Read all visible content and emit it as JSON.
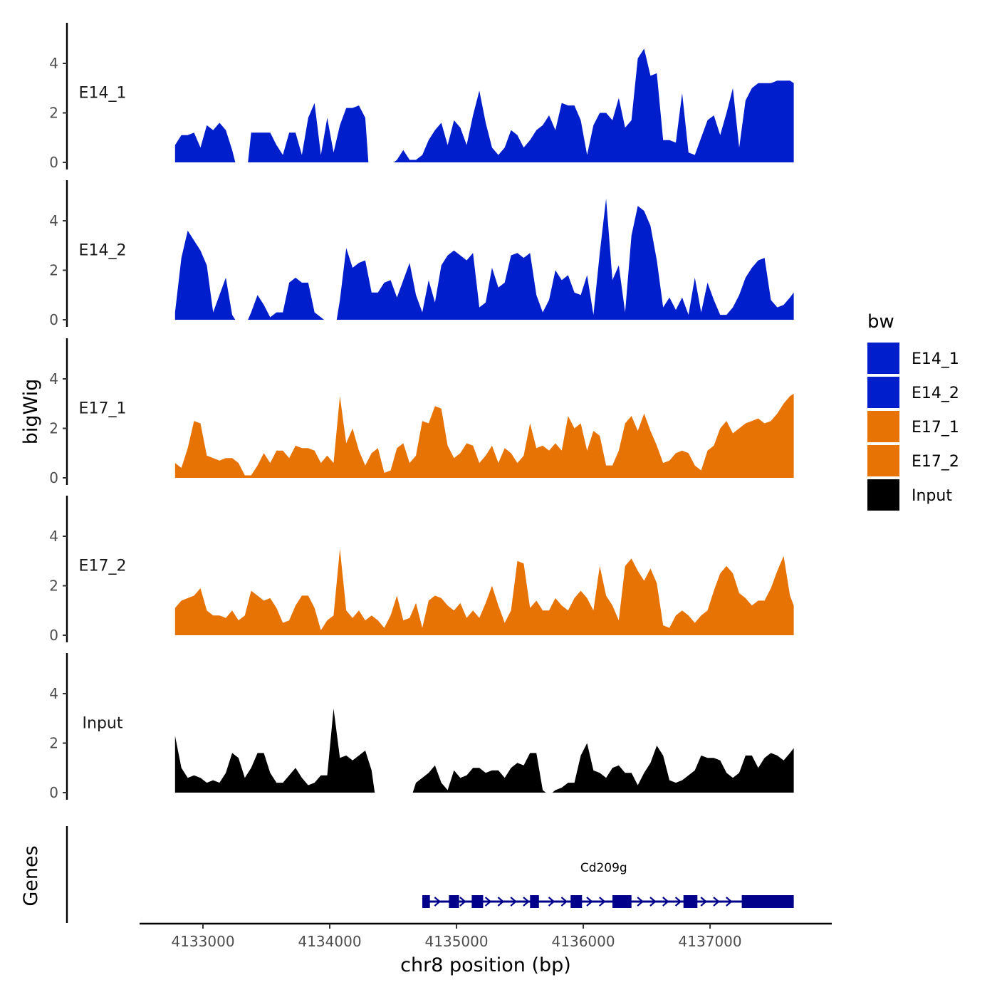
{
  "chart_data": {
    "type": "area",
    "xlabel": "chr8 position (bp)",
    "ylabel": "bigWig",
    "genes_label": "Genes",
    "xlim": [
      4132500,
      4137960
    ],
    "x_ticks": [
      4133000,
      4134000,
      4135000,
      4136000,
      4137000
    ],
    "x_tick_labels": [
      "4133000",
      "4134000",
      "4135000",
      "4136000",
      "4137000"
    ],
    "ylim": [
      0,
      5.6
    ],
    "y_ticks": [
      0,
      2,
      4
    ],
    "y_tick_labels": [
      "0",
      "2",
      "4"
    ],
    "legend": {
      "title": "bw",
      "entries": [
        {
          "label": "E14_1",
          "color": "#001ecc"
        },
        {
          "label": "E14_2",
          "color": "#001ecc"
        },
        {
          "label": "E17_1",
          "color": "#e87305"
        },
        {
          "label": "E17_2",
          "color": "#e87305"
        },
        {
          "label": "Input",
          "color": "#000000"
        }
      ]
    },
    "series": [
      {
        "name": "E14_1",
        "color": "#001ecc",
        "x": [
          4132780,
          4132830,
          4132880,
          4132930,
          4132980,
          4133030,
          4133080,
          4133130,
          4133180,
          4133230,
          4133280,
          4133330,
          4133380,
          4133430,
          4133480,
          4133530,
          4133580,
          4133630,
          4133680,
          4133730,
          4133780,
          4133830,
          4133880,
          4133930,
          4133980,
          4134030,
          4134080,
          4134130,
          4134180,
          4134230,
          4134280,
          4134330,
          4134380,
          4134430,
          4134480,
          4134530,
          4134580,
          4134630,
          4134680,
          4134730,
          4134780,
          4134830,
          4134880,
          4134930,
          4134980,
          4135030,
          4135080,
          4135130,
          4135180,
          4135230,
          4135280,
          4135330,
          4135380,
          4135430,
          4135480,
          4135530,
          4135580,
          4135630,
          4135680,
          4135730,
          4135780,
          4135830,
          4135880,
          4135930,
          4135980,
          4136030,
          4136080,
          4136130,
          4136180,
          4136230,
          4136280,
          4136330,
          4136380,
          4136430,
          4136480,
          4136530,
          4136580,
          4136630,
          4136680,
          4136730,
          4136780,
          4136830,
          4136880,
          4136930,
          4136980,
          4137030,
          4137080,
          4137130,
          4137180,
          4137230,
          4137280,
          4137330,
          4137380,
          4137430,
          4137480,
          4137530,
          4137580,
          4137630,
          4137660
        ],
        "y": [
          0.7,
          1.1,
          1.1,
          1.2,
          0.6,
          1.5,
          1.3,
          1.6,
          1.3,
          0.5,
          0,
          0,
          1.2,
          1.2,
          1.2,
          1.2,
          0.7,
          0.3,
          1.2,
          1.2,
          0.3,
          1.8,
          2.4,
          0.3,
          1.8,
          0.4,
          1.5,
          2.2,
          2.2,
          2.3,
          1.8,
          0,
          0,
          0,
          0,
          0.1,
          0.5,
          0.1,
          0.1,
          0.3,
          0.9,
          1.3,
          1.6,
          0.7,
          1.7,
          1.4,
          0.7,
          1.9,
          2.9,
          1.6,
          0.6,
          0.3,
          0.6,
          1.3,
          1.1,
          0.6,
          0.9,
          1.3,
          1.5,
          1.9,
          1.3,
          2.4,
          2.3,
          2.3,
          1.7,
          0.3,
          1.5,
          2.0,
          2.0,
          1.7,
          2.6,
          1.4,
          1.7,
          4.2,
          4.6,
          3.5,
          3.6,
          0.9,
          0.9,
          0.8,
          2.8,
          0.4,
          0.3,
          1.0,
          1.7,
          1.9,
          1.1,
          2.0,
          3.0,
          0.6,
          2.5,
          3.0,
          3.2,
          3.2,
          3.2,
          3.3,
          3.3,
          3.3,
          3.2
        ]
      },
      {
        "name": "E14_2",
        "color": "#001ecc",
        "x": [
          4132780,
          4132830,
          4132880,
          4132930,
          4132980,
          4133030,
          4133080,
          4133130,
          4133180,
          4133230,
          4133280,
          4133330,
          4133380,
          4133430,
          4133480,
          4133530,
          4133580,
          4133630,
          4133680,
          4133730,
          4133780,
          4133830,
          4133880,
          4133930,
          4133980,
          4134030,
          4134080,
          4134130,
          4134180,
          4134230,
          4134280,
          4134330,
          4134380,
          4134430,
          4134480,
          4134530,
          4134580,
          4134630,
          4134680,
          4134730,
          4134780,
          4134830,
          4134880,
          4134930,
          4134980,
          4135030,
          4135080,
          4135130,
          4135180,
          4135230,
          4135280,
          4135330,
          4135380,
          4135430,
          4135480,
          4135530,
          4135580,
          4135630,
          4135680,
          4135730,
          4135780,
          4135830,
          4135880,
          4135930,
          4135980,
          4136030,
          4136080,
          4136130,
          4136180,
          4136230,
          4136280,
          4136330,
          4136380,
          4136430,
          4136480,
          4136530,
          4136580,
          4136630,
          4136680,
          4136730,
          4136780,
          4136830,
          4136880,
          4136930,
          4136980,
          4137030,
          4137080,
          4137130,
          4137180,
          4137230,
          4137280,
          4137330,
          4137380,
          4137430,
          4137480,
          4137530,
          4137580,
          4137630,
          4137660
        ],
        "y": [
          0.3,
          2.5,
          3.6,
          3.2,
          2.8,
          2.2,
          0.3,
          1.0,
          1.7,
          0.2,
          0,
          0,
          0.3,
          1.0,
          0.6,
          0.1,
          0.3,
          0.3,
          1.5,
          1.7,
          1.5,
          1.5,
          0.3,
          0.1,
          0,
          0,
          0.8,
          2.9,
          2.1,
          2.3,
          2.4,
          1.1,
          1.1,
          1.5,
          1.6,
          0.9,
          1.6,
          2.3,
          1.0,
          0.3,
          1.6,
          0.7,
          2.2,
          2.6,
          2.8,
          2.6,
          2.4,
          2.7,
          0.5,
          0.7,
          2.1,
          1.3,
          1.5,
          2.6,
          2.7,
          2.5,
          2.7,
          1.0,
          0.3,
          0.8,
          2.0,
          1.6,
          1.8,
          1.1,
          1.0,
          1.8,
          0.2,
          2.7,
          4.9,
          1.6,
          2.2,
          0.3,
          3.4,
          4.6,
          4.4,
          3.8,
          2.4,
          0.5,
          0.9,
          0.4,
          0.9,
          0.2,
          1.7,
          0.3,
          1.5,
          0.8,
          0.2,
          0.2,
          0.5,
          1.0,
          1.7,
          2.1,
          2.4,
          2.5,
          0.8,
          0.5,
          0.6,
          0.9,
          1.1
        ]
      },
      {
        "name": "E17_1",
        "color": "#e87305",
        "x": [
          4132780,
          4132830,
          4132880,
          4132930,
          4132980,
          4133030,
          4133080,
          4133130,
          4133180,
          4133230,
          4133280,
          4133330,
          4133380,
          4133430,
          4133480,
          4133530,
          4133580,
          4133630,
          4133680,
          4133730,
          4133780,
          4133830,
          4133880,
          4133930,
          4133980,
          4134030,
          4134080,
          4134130,
          4134180,
          4134230,
          4134280,
          4134330,
          4134380,
          4134430,
          4134480,
          4134530,
          4134580,
          4134630,
          4134680,
          4134730,
          4134780,
          4134830,
          4134880,
          4134930,
          4134980,
          4135030,
          4135080,
          4135130,
          4135180,
          4135230,
          4135280,
          4135330,
          4135380,
          4135430,
          4135480,
          4135530,
          4135580,
          4135630,
          4135680,
          4135730,
          4135780,
          4135830,
          4135880,
          4135930,
          4135980,
          4136030,
          4136080,
          4136130,
          4136180,
          4136230,
          4136280,
          4136330,
          4136380,
          4136430,
          4136480,
          4136530,
          4136580,
          4136630,
          4136680,
          4136730,
          4136780,
          4136830,
          4136880,
          4136930,
          4136980,
          4137030,
          4137080,
          4137130,
          4137180,
          4137230,
          4137280,
          4137330,
          4137380,
          4137430,
          4137480,
          4137530,
          4137580,
          4137630,
          4137660
        ],
        "y": [
          0.6,
          0.4,
          1.2,
          2.3,
          2.2,
          0.9,
          0.8,
          0.7,
          0.8,
          0.8,
          0.6,
          0.1,
          0.1,
          0.5,
          1.0,
          0.6,
          1.1,
          1.1,
          0.8,
          1.3,
          1.2,
          1.2,
          1.1,
          0.6,
          0.9,
          0.6,
          3.3,
          1.4,
          2.0,
          1.1,
          0.5,
          1.0,
          1.2,
          0.2,
          0.3,
          1.2,
          1.4,
          0.6,
          0.9,
          2.3,
          2.2,
          2.9,
          2.8,
          1.3,
          0.8,
          1.0,
          1.4,
          1.3,
          0.6,
          0.9,
          1.3,
          0.6,
          1.2,
          1.0,
          0.6,
          0.9,
          2.2,
          1.2,
          1.3,
          1.1,
          1.4,
          1.1,
          2.5,
          2.0,
          2.2,
          1.1,
          1.9,
          1.7,
          0.5,
          0.5,
          1.1,
          2.2,
          2.5,
          1.9,
          2.6,
          1.9,
          1.3,
          0.6,
          0.7,
          1.0,
          1.1,
          1.0,
          0.5,
          0.3,
          1.1,
          1.3,
          2.0,
          2.3,
          1.8,
          2.0,
          2.2,
          2.3,
          2.4,
          2.2,
          2.3,
          2.6,
          3.0,
          3.3,
          3.4
        ]
      },
      {
        "name": "E17_2",
        "color": "#e87305",
        "x": [
          4132780,
          4132830,
          4132880,
          4132930,
          4132980,
          4133030,
          4133080,
          4133130,
          4133180,
          4133230,
          4133280,
          4133330,
          4133380,
          4133430,
          4133480,
          4133530,
          4133580,
          4133630,
          4133680,
          4133730,
          4133780,
          4133830,
          4133880,
          4133930,
          4133980,
          4134030,
          4134080,
          4134130,
          4134180,
          4134230,
          4134280,
          4134330,
          4134380,
          4134430,
          4134480,
          4134530,
          4134580,
          4134630,
          4134680,
          4134730,
          4134780,
          4134830,
          4134880,
          4134930,
          4134980,
          4135030,
          4135080,
          4135130,
          4135180,
          4135230,
          4135280,
          4135330,
          4135380,
          4135430,
          4135480,
          4135530,
          4135580,
          4135630,
          4135680,
          4135730,
          4135780,
          4135830,
          4135880,
          4135930,
          4135980,
          4136030,
          4136080,
          4136130,
          4136180,
          4136230,
          4136280,
          4136330,
          4136380,
          4136430,
          4136480,
          4136530,
          4136580,
          4136630,
          4136680,
          4136730,
          4136780,
          4136830,
          4136880,
          4136930,
          4136980,
          4137030,
          4137080,
          4137130,
          4137180,
          4137230,
          4137280,
          4137330,
          4137380,
          4137430,
          4137480,
          4137530,
          4137580,
          4137630,
          4137660
        ],
        "y": [
          1.1,
          1.4,
          1.5,
          1.6,
          1.9,
          1.0,
          0.8,
          0.8,
          0.7,
          1.0,
          0.6,
          0.8,
          1.8,
          1.6,
          1.4,
          1.5,
          1.1,
          0.5,
          0.6,
          1.2,
          1.6,
          1.6,
          1.1,
          0.2,
          0.6,
          0.8,
          3.5,
          1.0,
          0.7,
          1.0,
          0.6,
          0.8,
          0.6,
          0.3,
          0.8,
          1.6,
          0.6,
          0.7,
          1.3,
          0.3,
          1.4,
          1.6,
          1.5,
          1.2,
          1.0,
          1.3,
          0.7,
          1.0,
          0.7,
          1.3,
          2.0,
          1.2,
          0.5,
          1.0,
          3.0,
          2.9,
          1.1,
          1.4,
          1.0,
          1.0,
          1.5,
          1.2,
          1.0,
          1.5,
          1.8,
          1.5,
          1.0,
          2.8,
          1.6,
          1.2,
          0.6,
          2.8,
          3.1,
          2.6,
          2.2,
          2.7,
          2.1,
          0.4,
          0.3,
          0.8,
          1.0,
          0.8,
          0.5,
          0.8,
          1.0,
          1.8,
          2.5,
          2.8,
          2.5,
          1.7,
          1.5,
          1.2,
          1.4,
          1.4,
          1.9,
          2.6,
          3.2,
          1.6,
          1.2
        ]
      },
      {
        "name": "Input",
        "color": "#000000",
        "x": [
          4132780,
          4132830,
          4132880,
          4132930,
          4132980,
          4133030,
          4133080,
          4133130,
          4133180,
          4133230,
          4133280,
          4133330,
          4133380,
          4133430,
          4133480,
          4133530,
          4133580,
          4133630,
          4133680,
          4133730,
          4133780,
          4133830,
          4133880,
          4133930,
          4133980,
          4134030,
          4134080,
          4134130,
          4134180,
          4134230,
          4134280,
          4134330,
          4134380,
          4134430,
          4134480,
          4134530,
          4134580,
          4134630,
          4134680,
          4134730,
          4134780,
          4134830,
          4134880,
          4134930,
          4134980,
          4135030,
          4135080,
          4135130,
          4135180,
          4135230,
          4135280,
          4135330,
          4135380,
          4135430,
          4135480,
          4135530,
          4135580,
          4135630,
          4135680,
          4135730,
          4135780,
          4135830,
          4135880,
          4135930,
          4135980,
          4136030,
          4136080,
          4136130,
          4136180,
          4136230,
          4136280,
          4136330,
          4136380,
          4136430,
          4136480,
          4136530,
          4136580,
          4136630,
          4136680,
          4136730,
          4136780,
          4136830,
          4136880,
          4136930,
          4136980,
          4137030,
          4137080,
          4137130,
          4137180,
          4137230,
          4137280,
          4137330,
          4137380,
          4137430,
          4137480,
          4137530,
          4137580,
          4137630,
          4137660
        ],
        "y": [
          2.3,
          1.0,
          0.6,
          0.7,
          0.6,
          0.4,
          0.5,
          0.4,
          0.8,
          1.6,
          1.4,
          0.6,
          1.0,
          1.6,
          1.6,
          0.8,
          0.4,
          0.4,
          0.7,
          1.0,
          0.6,
          0.3,
          0.4,
          0.7,
          0.7,
          3.4,
          1.4,
          1.5,
          1.3,
          1.5,
          1.7,
          0.9,
          0,
          0,
          0,
          0,
          0,
          0,
          0.4,
          0.6,
          0.8,
          1.1,
          0.4,
          0.1,
          0.9,
          0.6,
          0.7,
          1.0,
          1.0,
          0.8,
          0.9,
          0.9,
          0.6,
          1.0,
          1.2,
          1.1,
          1.6,
          1.6,
          0.1,
          0,
          0.1,
          0.2,
          0.4,
          0.4,
          1.5,
          2.0,
          0.9,
          0.8,
          0.6,
          1.0,
          1.1,
          0.8,
          0.8,
          0.3,
          0.8,
          1.2,
          1.9,
          1.5,
          0.5,
          0.4,
          0.5,
          0.7,
          0.9,
          1.5,
          1.4,
          1.4,
          1.3,
          0.8,
          0.6,
          0.8,
          1.5,
          1.5,
          1.0,
          1.4,
          1.6,
          1.5,
          1.3,
          1.6,
          1.8
        ]
      }
    ],
    "genes": [
      {
        "name": "Cd209g",
        "strand": "+",
        "start": 4134730,
        "end": 4137660,
        "exons": [
          [
            4134730,
            4134790
          ],
          [
            4134940,
            4135020
          ],
          [
            4135120,
            4135210
          ],
          [
            4135580,
            4135650
          ],
          [
            4135900,
            4135990
          ],
          [
            4136230,
            4136380
          ],
          [
            4136790,
            4136900
          ],
          [
            4137250,
            4137660
          ]
        ]
      }
    ]
  }
}
